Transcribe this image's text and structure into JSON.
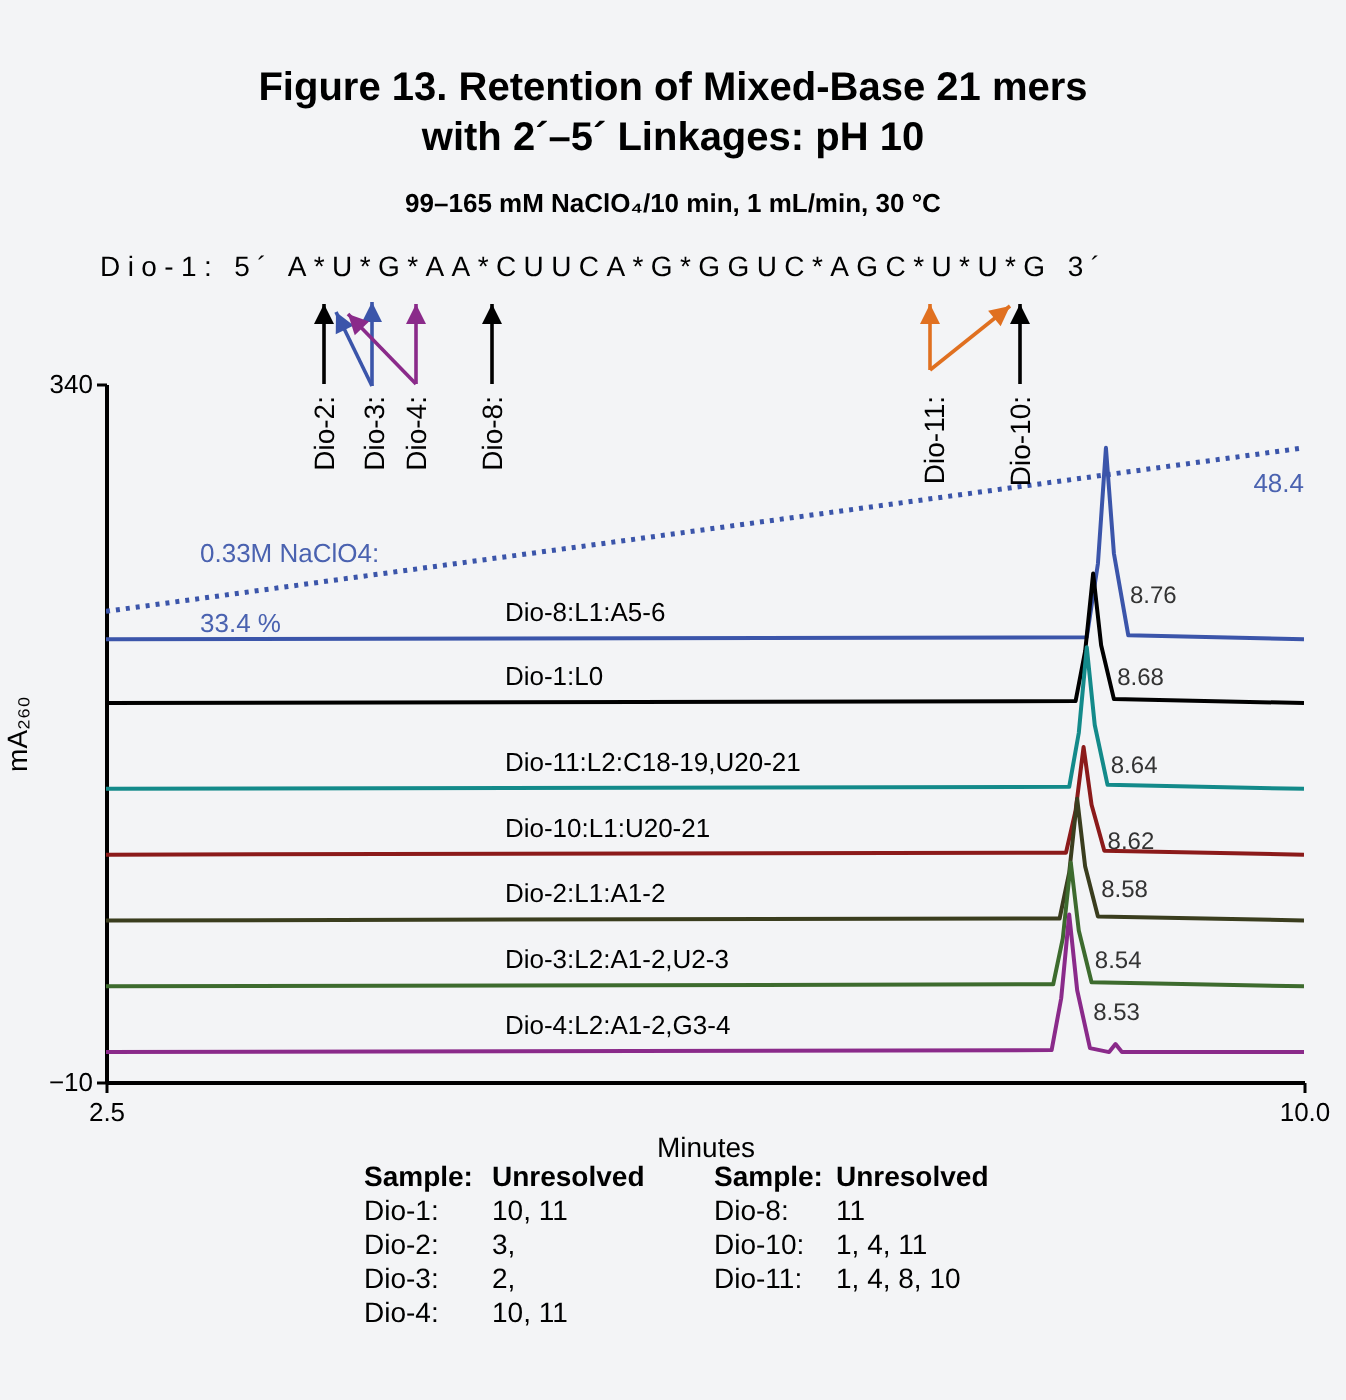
{
  "chart_data": {
    "type": "line",
    "title": "Figure 13. Retention of Mixed-Base 21 mers\nwith 2´–5´ Linkages: pH 10",
    "subtitle": "99–165 mM NaClO₄/10 min, 1 mL/min, 30 °C",
    "xlabel": "Minutes",
    "ylabel": "mA₂₆₀",
    "xlim": [
      2.5,
      10
    ],
    "xticks": [
      2.5,
      {
        "value": 10,
        "label": "10.0"
      }
    ],
    "ylim": [
      -10,
      340
    ],
    "yticks": [
      {
        "value": -10,
        "label": "−10"
      },
      340
    ],
    "grid": false,
    "marker": "none",
    "series": [
      {
        "name": "Dio-8:L1:A5-6",
        "color": "#3b55aa",
        "x": [
          2.5,
          8.64,
          8.71,
          8.76,
          8.81,
          8.9,
          10
        ],
        "values": [
          212,
          213,
          250,
          308,
          255,
          214,
          212
        ]
      },
      {
        "name": "Dio-1:L0",
        "color": "#000000",
        "x": [
          2.5,
          8.57,
          8.63,
          8.68,
          8.73,
          8.81,
          10
        ],
        "values": [
          180,
          181,
          206,
          245,
          209,
          182,
          180
        ]
      },
      {
        "name": "Dio-11:L2:C18-19,U20-21",
        "color": "#138a8a",
        "x": [
          2.5,
          8.53,
          8.59,
          8.64,
          8.69,
          8.77,
          10
        ],
        "values": [
          137,
          138,
          165,
          208,
          169,
          139,
          137
        ]
      },
      {
        "name": "Dio-10:L1:U20-21",
        "color": "#8b1a1a",
        "x": [
          2.5,
          8.51,
          8.57,
          8.62,
          8.67,
          8.75,
          10
        ],
        "values": [
          104,
          105,
          126,
          158,
          129,
          106,
          104
        ]
      },
      {
        "name": "Dio-2:L1:A1-2",
        "color": "#3a3d1e",
        "x": [
          2.5,
          8.47,
          8.53,
          8.58,
          8.63,
          8.71,
          10
        ],
        "values": [
          71,
          72,
          95,
          132,
          98,
          73,
          71
        ]
      },
      {
        "name": "Dio-3:L2:A1-2,U2-3",
        "color": "#3d6b2e",
        "x": [
          2.5,
          8.43,
          8.49,
          8.54,
          8.59,
          8.67,
          10
        ],
        "values": [
          38,
          39,
          62,
          100,
          66,
          40,
          38
        ]
      },
      {
        "name": "Dio-4:L2:A1-2,G3-4",
        "color": "#8a2a8a",
        "x": [
          2.5,
          8.42,
          8.48,
          8.53,
          8.58,
          8.66,
          8.78,
          8.82,
          8.86,
          10
        ],
        "values": [
          5,
          6,
          32,
          74,
          36,
          7,
          5,
          9,
          5,
          5
        ]
      },
      {
        "color": "#3b55aa",
        "line_style": "dotted",
        "x": [
          2.5,
          10
        ],
        "values": [
          226,
          308
        ]
      }
    ],
    "annotations": [
      "Dio-1: 5´ A*U*G*AA*CUUCA*G*GGUC*AGC*U*U*G 3´",
      "Dio-2:",
      "Dio-3:",
      "Dio-4:",
      "Dio-8:",
      "Dio-11:",
      "Dio-10:",
      "0.33M NaClO4:",
      "33.4 %",
      "48.4",
      {
        "text": "8.76",
        "x": 8.76,
        "y": 234
      },
      {
        "text": "8.68",
        "x": 8.68,
        "y": 193
      },
      {
        "text": "8.64",
        "x": 8.64,
        "y": 149
      },
      {
        "text": "8.62",
        "x": 8.62,
        "y": 111
      },
      {
        "text": "8.58",
        "x": 8.58,
        "y": 87
      },
      {
        "text": "8.54",
        "x": 8.54,
        "y": 51
      },
      {
        "text": "8.53",
        "x": 8.53,
        "y": 25
      },
      "Sample:",
      "Unresolved",
      "Dio-1:",
      "10, 11",
      "Dio-2:",
      "3,",
      "Dio-3:",
      "2,",
      "Dio-4:",
      "10, 11",
      "Sample:",
      "Unresolved",
      "Dio-8:",
      "11",
      "Dio-10:",
      "1, 4, 11",
      "Dio-11:",
      "1, 4, 8, 10"
    ]
  }
}
